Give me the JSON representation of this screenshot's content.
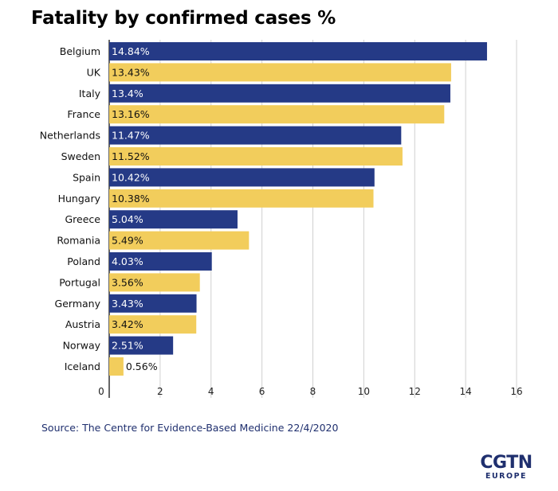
{
  "title": "Fatality by confirmed cases %",
  "source": "Source: The Centre for Evidence-Based Medicine 22/4/2020",
  "logo": {
    "main": "CGTN",
    "sub": "EUROPE"
  },
  "colors": {
    "navy": "#253a86",
    "yellow": "#f2cd5c",
    "text_navy": "#1f2f6e"
  },
  "chart_data": {
    "type": "bar",
    "orientation": "horizontal",
    "title": "Fatality by confirmed cases %",
    "categories": [
      "Belgium",
      "UK",
      "Italy",
      "France",
      "Netherlands",
      "Sweden",
      "Spain",
      "Hungary",
      "Greece",
      "Romania",
      "Poland",
      "Portugal",
      "Germany",
      "Austria",
      "Norway",
      "Iceland"
    ],
    "values": [
      14.84,
      13.43,
      13.4,
      13.16,
      11.47,
      11.52,
      10.42,
      10.38,
      5.04,
      5.49,
      4.03,
      3.56,
      3.43,
      3.42,
      2.51,
      0.56
    ],
    "data_labels": [
      "14.84%",
      "13.43%",
      "13.4%",
      "13.16%",
      "11.47%",
      "11.52%",
      "10.42%",
      "10.38%",
      "5.04%",
      "5.49%",
      "4.03%",
      "3.56%",
      "3.43%",
      "3.42%",
      "2.51%",
      "0.56%"
    ],
    "bar_colors": [
      "navy",
      "yellow",
      "navy",
      "yellow",
      "navy",
      "yellow",
      "navy",
      "yellow",
      "navy",
      "yellow",
      "navy",
      "yellow",
      "navy",
      "yellow",
      "navy",
      "yellow"
    ],
    "xticks": [
      0,
      2,
      4,
      6,
      8,
      10,
      12,
      14,
      16
    ],
    "xlim": [
      0,
      16
    ],
    "grid": true,
    "xlabel": "",
    "ylabel": ""
  }
}
